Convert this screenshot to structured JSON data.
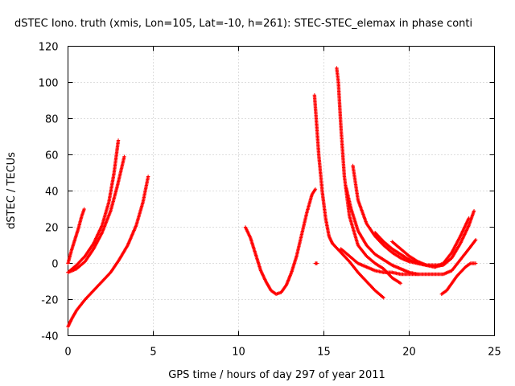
{
  "chart_data": {
    "type": "scatter",
    "title": "dSTEC Iono. truth (xmis, Lon=105, Lat=-10, h=261): STEC-STEC_elemax in phase conti",
    "xlabel": "GPS time / hours of day 297 of year 2011",
    "ylabel": "dSTEC  / TECUs",
    "xlim": [
      0,
      25
    ],
    "ylim": [
      -40,
      120
    ],
    "xticks": [
      0,
      5,
      10,
      15,
      20,
      25
    ],
    "yticks": [
      -40,
      -20,
      0,
      20,
      40,
      60,
      80,
      100,
      120
    ],
    "x_tick_labels": [
      "0",
      "5",
      "10",
      "15",
      "20",
      "25"
    ],
    "y_tick_labels": [
      "-40",
      "-20",
      "0",
      "20",
      "40",
      "60",
      "80",
      "100",
      "120"
    ],
    "grid": true,
    "marker": "plus",
    "color": "#ff0000",
    "series": [
      {
        "x": [
          0.0,
          0.2,
          0.4,
          0.6,
          0.8,
          0.95
        ],
        "y": [
          0,
          7,
          13,
          19,
          26,
          30
        ]
      },
      {
        "x": [
          0.0,
          0.5,
          1.0,
          1.5,
          2.0,
          2.4,
          2.7,
          2.95
        ],
        "y": [
          -5,
          -1,
          4,
          11,
          21,
          34,
          50,
          68
        ]
      },
      {
        "x": [
          0.0,
          0.5,
          1.0,
          1.5,
          2.0,
          2.5,
          2.9,
          3.3
        ],
        "y": [
          -5,
          -3,
          1,
          8,
          17,
          29,
          43,
          59
        ]
      },
      {
        "x": [
          0.0,
          0.2,
          0.5,
          1.0,
          1.5,
          2.0,
          2.5,
          3.0,
          3.5,
          4.0,
          4.4,
          4.7
        ],
        "y": [
          -35,
          -31,
          -26,
          -20,
          -15,
          -10,
          -5,
          2,
          10,
          21,
          34,
          48
        ]
      },
      {
        "x": [
          10.4,
          10.7,
          11.0,
          11.3,
          11.6,
          11.9,
          12.2,
          12.5,
          12.8,
          13.1,
          13.4,
          13.7,
          14.0,
          14.3,
          14.5
        ],
        "y": [
          20,
          14,
          5,
          -4,
          -10,
          -15,
          -17,
          -16,
          -12,
          -5,
          4,
          16,
          28,
          38,
          41
        ]
      },
      {
        "x": [
          14.5,
          14.6
        ],
        "y": [
          0,
          0
        ]
      },
      {
        "x": [
          14.45,
          14.55,
          14.7,
          14.9,
          15.1,
          15.3,
          15.5
        ],
        "y": [
          93,
          80,
          60,
          40,
          25,
          15,
          11
        ]
      },
      {
        "x": [
          15.5,
          16.0,
          16.5,
          17.0,
          17.5,
          18.0,
          18.5
        ],
        "y": [
          11,
          6,
          1,
          -5,
          -10,
          -15,
          -19
        ]
      },
      {
        "x": [
          15.75,
          15.85,
          16.0,
          16.2,
          16.5,
          17.0,
          17.5,
          18.0,
          18.5,
          19.0,
          19.5
        ],
        "y": [
          108,
          100,
          75,
          48,
          26,
          10,
          4,
          0,
          -3,
          -8,
          -11
        ]
      },
      {
        "x": [
          16.0,
          16.5,
          17.0,
          17.5,
          18.0,
          18.5,
          19.0,
          19.5,
          20.0,
          20.5,
          21.0,
          21.5,
          22.0,
          22.5,
          23.0,
          23.5,
          23.9
        ],
        "y": [
          8,
          4,
          0,
          -2,
          -4,
          -5,
          -5,
          -6,
          -6,
          -6,
          -6,
          -6,
          -6,
          -4,
          2,
          8,
          13
        ]
      },
      {
        "x": [
          16.3,
          16.6,
          17.0,
          17.5,
          18.0,
          18.5,
          19.0,
          19.5,
          20.0,
          20.5
        ],
        "y": [
          42,
          30,
          18,
          10,
          5,
          2,
          -1,
          -3,
          -5,
          -6
        ]
      },
      {
        "x": [
          16.7,
          17.0,
          17.5,
          18.0,
          18.5,
          19.0,
          19.5,
          20.0,
          20.5,
          21.0,
          21.5,
          22.0,
          22.5,
          23.0,
          23.5,
          23.8
        ],
        "y": [
          54,
          35,
          22,
          15,
          10,
          6,
          3,
          1,
          0,
          -1,
          -1,
          -1,
          3,
          11,
          21,
          29
        ]
      },
      {
        "x": [
          18.0,
          18.5,
          19.0,
          19.5,
          20.0,
          20.5,
          21.0,
          21.5,
          22.0,
          22.5,
          23.0,
          23.5
        ],
        "y": [
          17,
          12,
          8,
          5,
          2,
          0,
          -1,
          -2,
          0,
          6,
          15,
          25
        ]
      },
      {
        "x": [
          19.0,
          19.5,
          20.0,
          20.5,
          21.0,
          21.5,
          21.9
        ],
        "y": [
          12,
          8,
          4,
          1,
          -1,
          -2,
          -1
        ]
      },
      {
        "x": [
          21.9,
          22.2,
          22.5,
          22.8,
          23.0,
          23.3,
          23.6,
          23.9
        ],
        "y": [
          -17,
          -15,
          -11,
          -7,
          -5,
          -2,
          0,
          0
        ]
      }
    ]
  }
}
